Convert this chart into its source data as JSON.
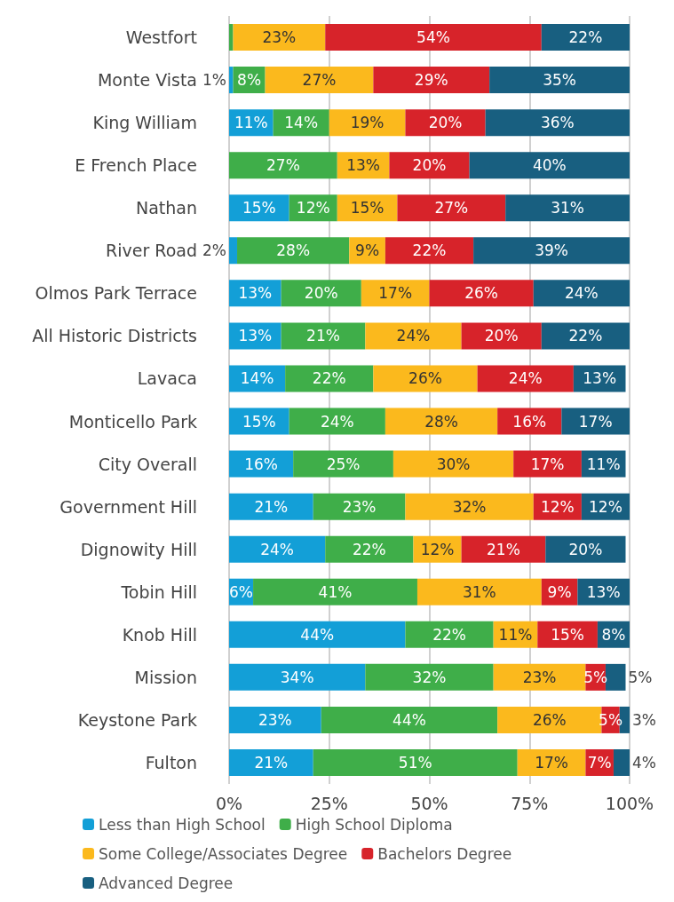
{
  "chart_data": {
    "type": "bar",
    "orientation": "horizontal",
    "stacked": true,
    "legend": "bottom",
    "grid": "x",
    "categories": [
      "Westfort",
      "Monte Vista",
      "King William",
      "E French Place",
      "Nathan",
      "River Road",
      "Olmos Park Terrace",
      "All Historic Districts",
      "Lavaca",
      "Monticello Park",
      "City Overall",
      "Government Hill",
      "Dignowity Hill",
      "Tobin Hill",
      "Knob Hill",
      "Mission",
      "Keystone Park",
      "Fulton"
    ],
    "xlim": [
      0,
      100
    ],
    "xticks": [
      {
        "value": 0,
        "label": "0%"
      },
      {
        "value": 25,
        "label": "25%"
      },
      {
        "value": 50,
        "label": "50%"
      },
      {
        "value": 75,
        "label": "75%"
      },
      {
        "value": 100,
        "label": "100%"
      }
    ],
    "series": [
      {
        "name": "Less than High School",
        "color": "#139fd7",
        "values": [
          0,
          1,
          11,
          0,
          15,
          2,
          13,
          13,
          14,
          15,
          16,
          21,
          24,
          6,
          44,
          34,
          23,
          21
        ],
        "value_labels": [
          null,
          "1%",
          "11%",
          null,
          "15%",
          "2%",
          "13%",
          "13%",
          "14%",
          "15%",
          "16%",
          "21%",
          "24%",
          "6%",
          "44%",
          "34%",
          "23%",
          "21%"
        ]
      },
      {
        "name": "High School Diploma",
        "color": "#3fae49",
        "values": [
          1,
          8,
          14,
          27,
          12,
          28,
          20,
          21,
          22,
          24,
          25,
          23,
          22,
          41,
          22,
          32,
          44,
          51
        ],
        "value_labels": [
          null,
          "8%",
          "14%",
          "27%",
          "12%",
          "28%",
          "20%",
          "21%",
          "22%",
          "24%",
          "25%",
          "23%",
          "22%",
          "41%",
          "22%",
          "32%",
          "44%",
          "51%"
        ]
      },
      {
        "name": "Some College/Associates Degree",
        "color": "#fbb91d",
        "values": [
          23,
          27,
          19,
          13,
          15,
          9,
          17,
          24,
          26,
          28,
          30,
          32,
          12,
          31,
          11,
          23,
          26,
          17
        ],
        "value_labels": [
          "23%",
          "27%",
          "19%",
          "13%",
          "15%",
          "9%",
          "17%",
          "24%",
          "26%",
          "28%",
          "30%",
          "32%",
          "12%",
          "31%",
          "11%",
          "23%",
          "26%",
          "17%"
        ]
      },
      {
        "name": "Bachelors Degree",
        "color": "#d7232a",
        "values": [
          54,
          29,
          20,
          20,
          27,
          22,
          26,
          20,
          24,
          16,
          17,
          12,
          21,
          9,
          15,
          5,
          4.5,
          7
        ],
        "value_labels": [
          "54%",
          "29%",
          "20%",
          "20%",
          "27%",
          "22%",
          "26%",
          "20%",
          "24%",
          "16%",
          "17%",
          "12%",
          "21%",
          "9%",
          "15%",
          "5%",
          "5%",
          "7%"
        ]
      },
      {
        "name": "Advanced Degree",
        "color": "#185f80",
        "values": [
          22,
          35,
          36,
          40,
          31,
          39,
          24,
          22,
          13,
          17,
          11,
          12,
          20,
          13,
          8,
          5,
          2.5,
          4
        ],
        "value_labels": [
          "22%",
          "35%",
          "36%",
          "40%",
          "31%",
          "39%",
          "24%",
          "22%",
          "13%",
          "17%",
          "11%",
          "12%",
          "20%",
          "13%",
          "8%",
          "5%",
          "3%",
          "4%"
        ]
      }
    ]
  }
}
